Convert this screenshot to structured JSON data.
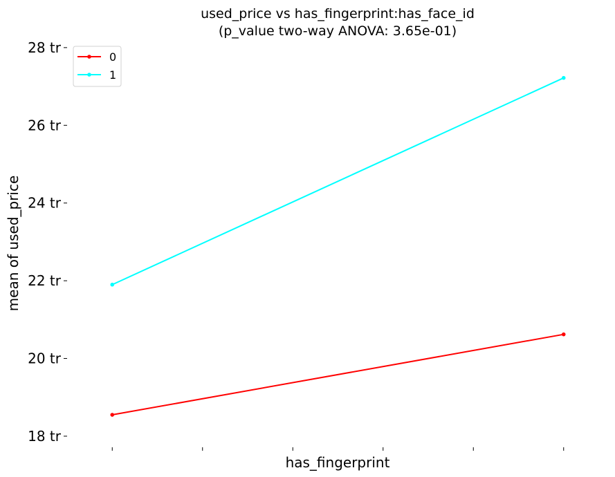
{
  "chart_data": {
    "type": "line",
    "title": "used_price vs has_fingerprint:has_face_id",
    "subtitle": "(p_value two-way ANOVA: 3.65e-01)",
    "xlabel": "has_fingerprint",
    "ylabel": "mean of used_price",
    "x": [
      0,
      1
    ],
    "xlim": [
      -0.1,
      1.1
    ],
    "x_ticks": [
      0,
      0.2,
      0.4,
      0.6,
      0.8,
      1.0
    ],
    "ylim": [
      17.75,
      28.3
    ],
    "y_ticks": [
      {
        "value": 18,
        "label": "18 tr"
      },
      {
        "value": 20,
        "label": "20 tr"
      },
      {
        "value": 22,
        "label": "22 tr"
      },
      {
        "value": 24,
        "label": "24 tr"
      },
      {
        "value": 26,
        "label": "26 tr"
      },
      {
        "value": 28,
        "label": "28 tr"
      }
    ],
    "series": [
      {
        "name": "0",
        "values": [
          18.55,
          20.62
        ],
        "color": "#ff0000"
      },
      {
        "name": "1",
        "values": [
          21.9,
          27.22
        ],
        "color": "#00ffff"
      }
    ],
    "legend": "top-left",
    "grid": false
  }
}
